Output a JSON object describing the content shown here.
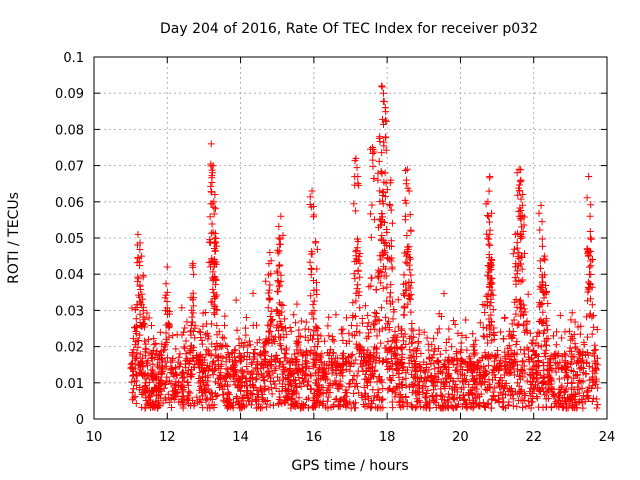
{
  "chart_data": {
    "type": "scatter",
    "title": "Day 204 of 2016, Rate Of TEC Index for receiver p032",
    "xlabel": "GPS time / hours",
    "ylabel": "ROTI / TECUs",
    "xlim": [
      10,
      24
    ],
    "ylim": [
      0,
      0.1
    ],
    "x_ticks": [
      "10",
      "12",
      "14",
      "16",
      "18",
      "20",
      "22",
      "24"
    ],
    "y_ticks": [
      "0",
      "0.01",
      "0.02",
      "0.03",
      "0.04",
      "0.05",
      "0.06",
      "0.07",
      "0.08",
      "0.09",
      "0.1"
    ],
    "grid": true,
    "marker": "+",
    "series": [
      {
        "name": "ROTI",
        "color": "#ff0000",
        "x_start": 11.0,
        "x_end": 23.75,
        "note": "dense background scatter between ~0.003 and ~0.02 TECU/min from 11h to 23.75h",
        "baseline_band": [
          0.003,
          0.02
        ],
        "peaks": [
          {
            "x": 11.2,
            "y": 0.051
          },
          {
            "x": 11.3,
            "y": 0.045
          },
          {
            "x": 12.0,
            "y": 0.042
          },
          {
            "x": 12.7,
            "y": 0.043
          },
          {
            "x": 13.2,
            "y": 0.076
          },
          {
            "x": 13.25,
            "y": 0.07
          },
          {
            "x": 13.3,
            "y": 0.062
          },
          {
            "x": 13.3,
            "y": 0.05
          },
          {
            "x": 14.8,
            "y": 0.046
          },
          {
            "x": 15.05,
            "y": 0.05
          },
          {
            "x": 15.1,
            "y": 0.056
          },
          {
            "x": 15.95,
            "y": 0.063
          },
          {
            "x": 16.05,
            "y": 0.049
          },
          {
            "x": 17.15,
            "y": 0.072
          },
          {
            "x": 17.2,
            "y": 0.067
          },
          {
            "x": 17.6,
            "y": 0.075
          },
          {
            "x": 17.85,
            "y": 0.092
          },
          {
            "x": 17.9,
            "y": 0.09
          },
          {
            "x": 17.95,
            "y": 0.086
          },
          {
            "x": 17.8,
            "y": 0.078
          },
          {
            "x": 18.1,
            "y": 0.066
          },
          {
            "x": 18.55,
            "y": 0.069
          },
          {
            "x": 18.6,
            "y": 0.063
          },
          {
            "x": 18.5,
            "y": 0.056
          },
          {
            "x": 20.8,
            "y": 0.067
          },
          {
            "x": 20.75,
            "y": 0.06
          },
          {
            "x": 20.8,
            "y": 0.051
          },
          {
            "x": 21.6,
            "y": 0.069
          },
          {
            "x": 21.65,
            "y": 0.066
          },
          {
            "x": 21.7,
            "y": 0.062
          },
          {
            "x": 21.5,
            "y": 0.051
          },
          {
            "x": 22.2,
            "y": 0.059
          },
          {
            "x": 22.3,
            "y": 0.045
          },
          {
            "x": 23.5,
            "y": 0.067
          },
          {
            "x": 23.55,
            "y": 0.05
          }
        ]
      }
    ]
  }
}
